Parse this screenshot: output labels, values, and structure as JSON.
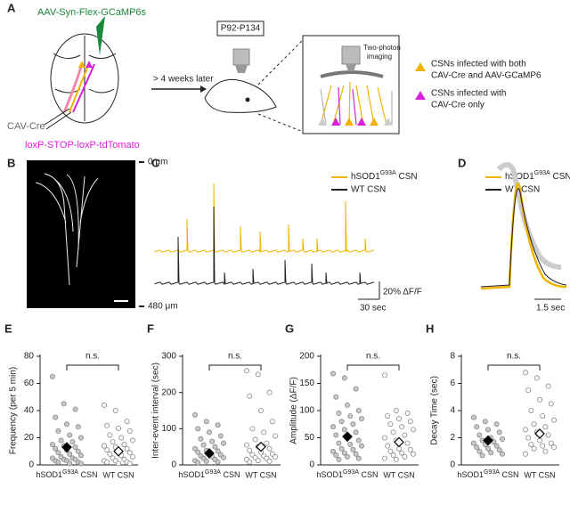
{
  "panels": [
    "A",
    "B",
    "C",
    "D",
    "E",
    "F",
    "G",
    "H"
  ],
  "diagram": {
    "virus": "AAV-Syn-Flex-GCaMP6s",
    "cre": "CAV-Cre",
    "reporter": "loxP-STOP-loxP-tdTomato",
    "delay": "> 4 weeks later",
    "age": "P92-P134",
    "imaging": [
      "Two-photon",
      "imaging"
    ],
    "legend_both": [
      "CSNs infected with both",
      "CAV-Cre and AAV-GCaMP6"
    ],
    "legend_cre": [
      "CSNs infected with",
      "CAV-Cre only"
    ]
  },
  "image": {
    "top_label": "0 μm",
    "bottom_label": "480 μm"
  },
  "traces": {
    "legend": [
      "hSOD1G93A CSN",
      "WT CSN"
    ],
    "colors": [
      "#f0b400",
      "#222222"
    ],
    "scale_c": [
      "20% ΔF/F",
      "30 sec"
    ],
    "scale_d": "1.5 sec"
  },
  "chart_data": [
    {
      "type": "strip",
      "ylabel": "Frequency (per 5 min)",
      "title": "n.s.",
      "categories": [
        "hSOD1G93A CSN",
        "WT CSN"
      ],
      "colors": [
        "#c8c8c8",
        "#ffffff"
      ],
      "values": [
        [
          65,
          45,
          41,
          35,
          30,
          28,
          25,
          22,
          20,
          18,
          17,
          15,
          14,
          13,
          12,
          11,
          10,
          9,
          8,
          7,
          6,
          5,
          5,
          4,
          4,
          3,
          3,
          2,
          2,
          1,
          1
        ],
        [
          44,
          40,
          32,
          29,
          27,
          25,
          22,
          20,
          18,
          17,
          15,
          14,
          13,
          12,
          11,
          10,
          9,
          8,
          7,
          6,
          5,
          4,
          3,
          3,
          2,
          2,
          1,
          1
        ]
      ],
      "means": [
        13,
        10
      ],
      "errors": [
        3,
        2
      ],
      "ylim": [
        0,
        80
      ],
      "yticks": [
        0,
        20,
        40,
        60,
        80
      ]
    },
    {
      "type": "strip",
      "ylabel": "Inter-event interval (sec)",
      "title": "n.s.",
      "categories": [
        "hSOD1G93A CSN",
        "WT CSN"
      ],
      "colors": [
        "#c8c8c8",
        "#ffffff"
      ],
      "values": [
        [
          138,
          120,
          110,
          100,
          90,
          80,
          72,
          65,
          60,
          55,
          50,
          45,
          40,
          38,
          35,
          30,
          28,
          25,
          22,
          20,
          18,
          15,
          12,
          10,
          8,
          6
        ],
        [
          260,
          250,
          200,
          190,
          150,
          120,
          100,
          90,
          80,
          70,
          60,
          55,
          50,
          45,
          40,
          35,
          30,
          28,
          25,
          22,
          20,
          18,
          15,
          12,
          10,
          8
        ]
      ],
      "means": [
        32,
        50
      ],
      "errors": [
        8,
        12
      ],
      "ylim": [
        0,
        300
      ],
      "yticks": [
        0,
        100,
        200,
        300
      ]
    },
    {
      "type": "strip",
      "ylabel": "Amplitude (ΔF/F)",
      "title": "n.s.",
      "categories": [
        "hSOD1G93A CSN",
        "WT CSN"
      ],
      "colors": [
        "#c8c8c8",
        "#ffffff"
      ],
      "values": [
        [
          168,
          160,
          140,
          125,
          110,
          100,
          95,
          90,
          85,
          80,
          75,
          70,
          65,
          60,
          55,
          50,
          45,
          40,
          38,
          35,
          30,
          28,
          25,
          22,
          20,
          18,
          15,
          12,
          10
        ],
        [
          165,
          100,
          95,
          90,
          85,
          80,
          75,
          70,
          65,
          60,
          55,
          50,
          45,
          40,
          35,
          30,
          28,
          25,
          22,
          20,
          18,
          15,
          12,
          10
        ]
      ],
      "means": [
        52,
        42
      ],
      "errors": [
        8,
        6
      ],
      "ylim": [
        0,
        200
      ],
      "yticks": [
        0,
        50,
        100,
        150,
        200
      ]
    },
    {
      "type": "strip",
      "ylabel": "Decay Time (sec)",
      "title": "n.s.",
      "categories": [
        "hSOD1G93A CSN",
        "WT CSN"
      ],
      "colors": [
        "#c8c8c8",
        "#ffffff"
      ],
      "values": [
        [
          3.5,
          3.2,
          3.0,
          2.8,
          2.6,
          2.4,
          2.2,
          2.0,
          1.9,
          1.8,
          1.7,
          1.6,
          1.5,
          1.4,
          1.3,
          1.2,
          1.1,
          1.0,
          0.9,
          0.8,
          0.7
        ],
        [
          6.8,
          6.4,
          5.8,
          5.5,
          4.8,
          4.5,
          4.0,
          3.6,
          3.3,
          3.0,
          2.8,
          2.6,
          2.4,
          2.2,
          2.0,
          1.8,
          1.6,
          1.5,
          1.4,
          1.3,
          1.2,
          1.0,
          0.8
        ]
      ],
      "means": [
        1.8,
        2.3
      ],
      "errors": [
        0.15,
        0.3
      ],
      "ylim": [
        0,
        8
      ],
      "yticks": [
        0,
        2,
        4,
        6,
        8
      ]
    }
  ]
}
